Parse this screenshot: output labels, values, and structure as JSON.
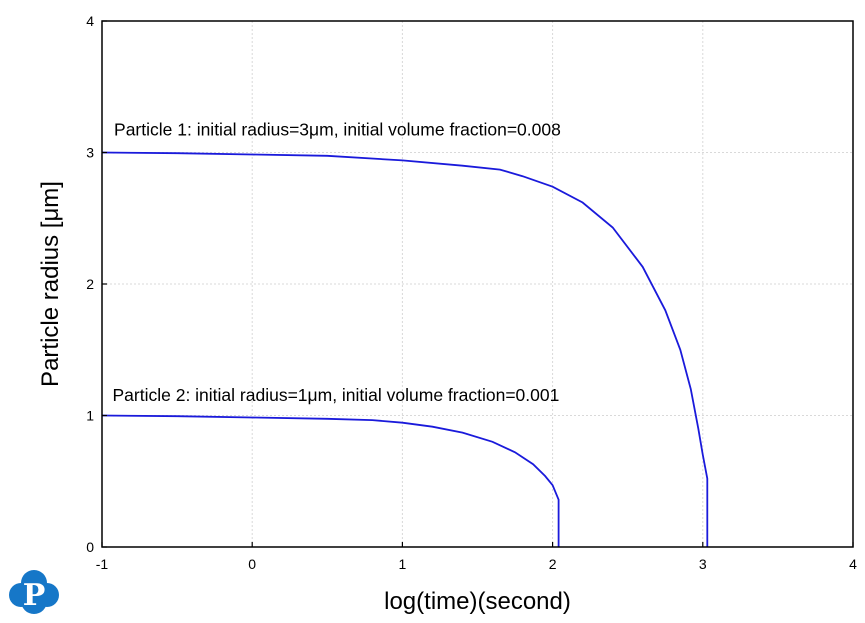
{
  "chart_data": {
    "type": "line",
    "title": "",
    "xlabel": "log(time)(second)",
    "ylabel": "Particle radius [μm]",
    "xlim": [
      -1,
      4
    ],
    "ylim": [
      0,
      4
    ],
    "xticks": [
      -1,
      0,
      1,
      2,
      3,
      4
    ],
    "yticks": [
      0,
      1,
      2,
      3,
      4
    ],
    "grid": true,
    "series": [
      {
        "color": "#1a1adb",
        "x": [
          -1,
          -0.5,
          0,
          0.5,
          1.0,
          1.4,
          1.65,
          1.8,
          2.0,
          2.2,
          2.4,
          2.6,
          2.75,
          2.85,
          2.92,
          2.97,
          3.0,
          3.03,
          3.03
        ],
        "y": [
          3.0,
          2.995,
          2.985,
          2.975,
          2.94,
          2.9,
          2.87,
          2.82,
          2.74,
          2.62,
          2.43,
          2.13,
          1.8,
          1.5,
          1.2,
          0.9,
          0.7,
          0.52,
          0.0
        ]
      },
      {
        "color": "#1a1adb",
        "x": [
          -1,
          -0.5,
          0,
          0.5,
          0.8,
          1.0,
          1.2,
          1.4,
          1.6,
          1.75,
          1.87,
          1.95,
          2.0,
          2.04,
          2.04
        ],
        "y": [
          1.0,
          0.995,
          0.985,
          0.975,
          0.965,
          0.945,
          0.915,
          0.87,
          0.8,
          0.72,
          0.63,
          0.54,
          0.47,
          0.36,
          0.0
        ]
      }
    ],
    "annotations": [
      {
        "text": "Particle 1: initial radius=3μm, initial volume fraction=0.008",
        "x": -0.92,
        "y": 3.13
      },
      {
        "text": "Particle 2: initial radius=1μm, initial volume fraction=0.001",
        "x": -0.93,
        "y": 1.11
      }
    ]
  },
  "logo": {
    "letter": "P",
    "color": "#1677c8"
  }
}
